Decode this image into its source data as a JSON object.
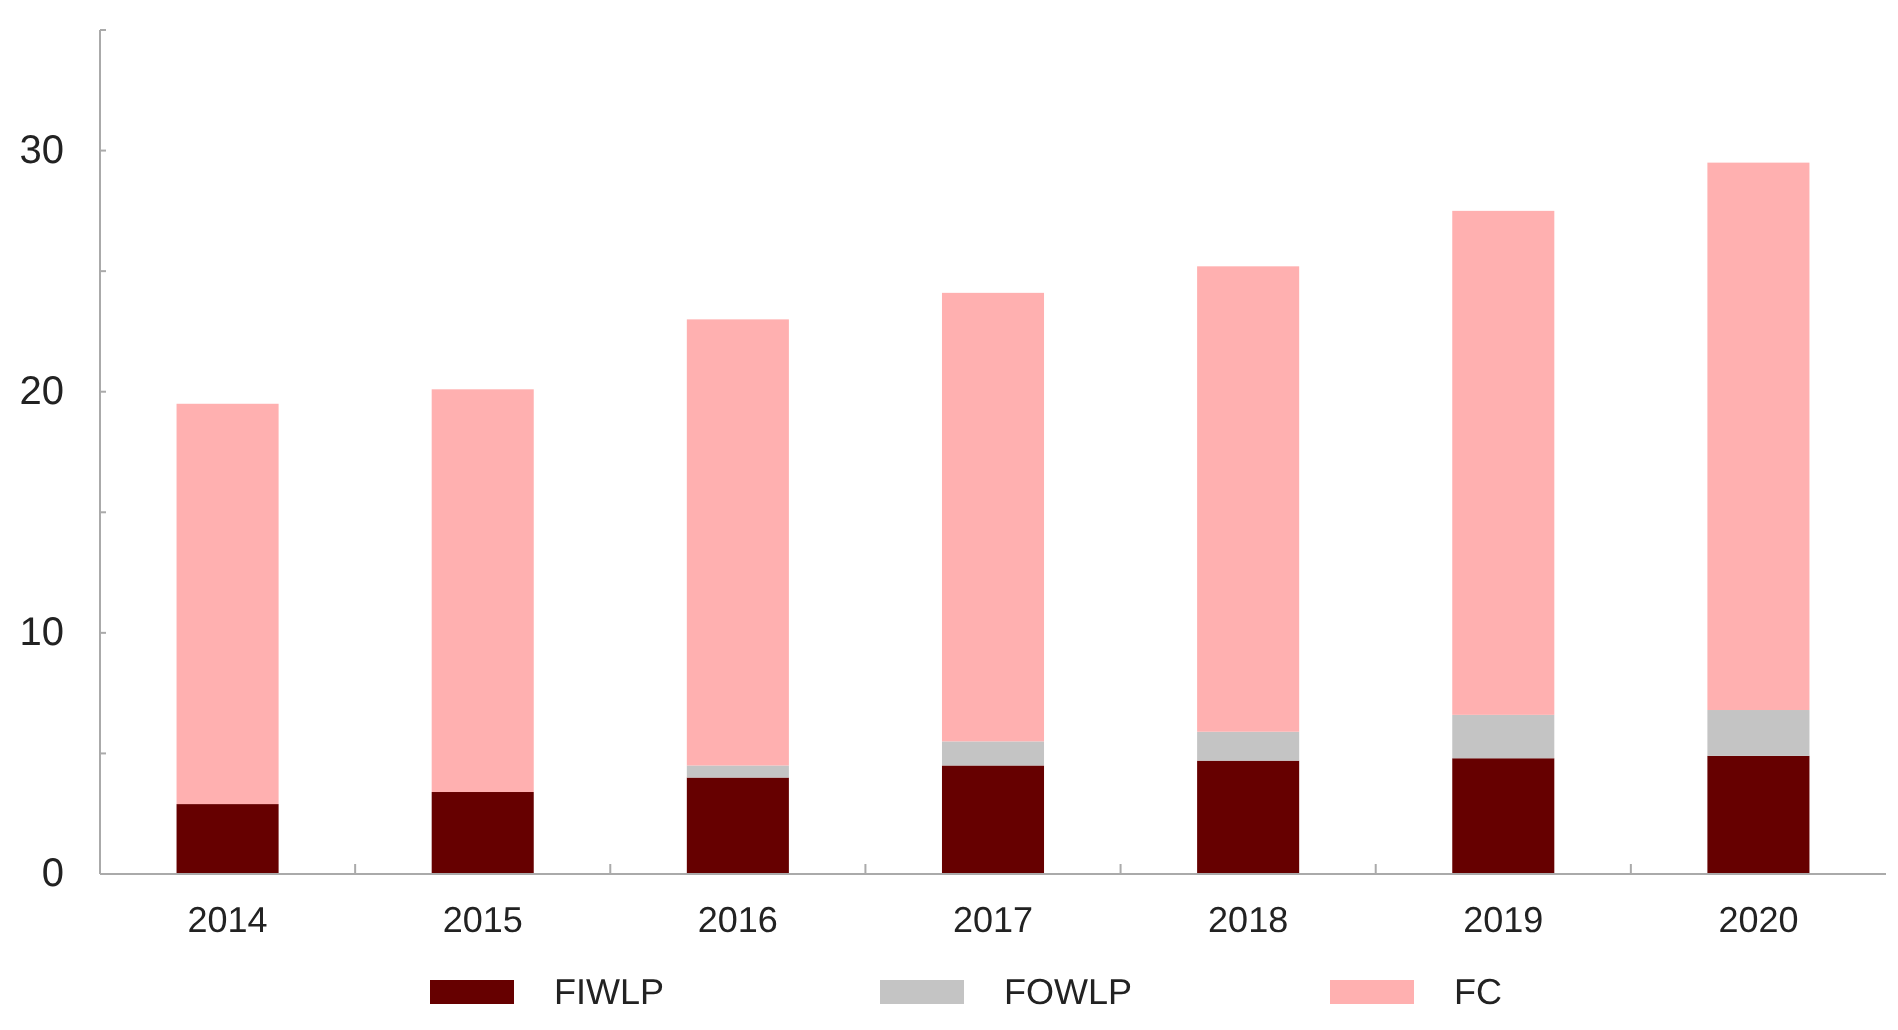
{
  "chart_data": {
    "type": "bar",
    "stacked": true,
    "categories": [
      "2014",
      "2015",
      "2016",
      "2017",
      "2018",
      "2019",
      "2020"
    ],
    "series": [
      {
        "name": "FIWLP",
        "color": "#660000",
        "values": [
          2.9,
          3.4,
          4.0,
          4.5,
          4.7,
          4.8,
          4.9
        ]
      },
      {
        "name": "FOWLP",
        "color": "#c4c4c4",
        "values": [
          0,
          null,
          0.5,
          1.0,
          1.2,
          1.8,
          1.9
        ]
      },
      {
        "name": "FC",
        "color": "#ffb0b0",
        "values": [
          16.6,
          16.7,
          18.5,
          18.6,
          19.3,
          20.9,
          22.7
        ]
      }
    ],
    "ylim": [
      0,
      35
    ],
    "yticks": [
      0,
      {
        "value": 5,
        "label": null
      },
      10,
      {
        "value": 15,
        "label": null
      },
      20,
      {
        "value": 25,
        "label": null
      },
      30,
      {
        "value": 35,
        "label": null
      }
    ],
    "grid": false,
    "legend": "bottom"
  }
}
